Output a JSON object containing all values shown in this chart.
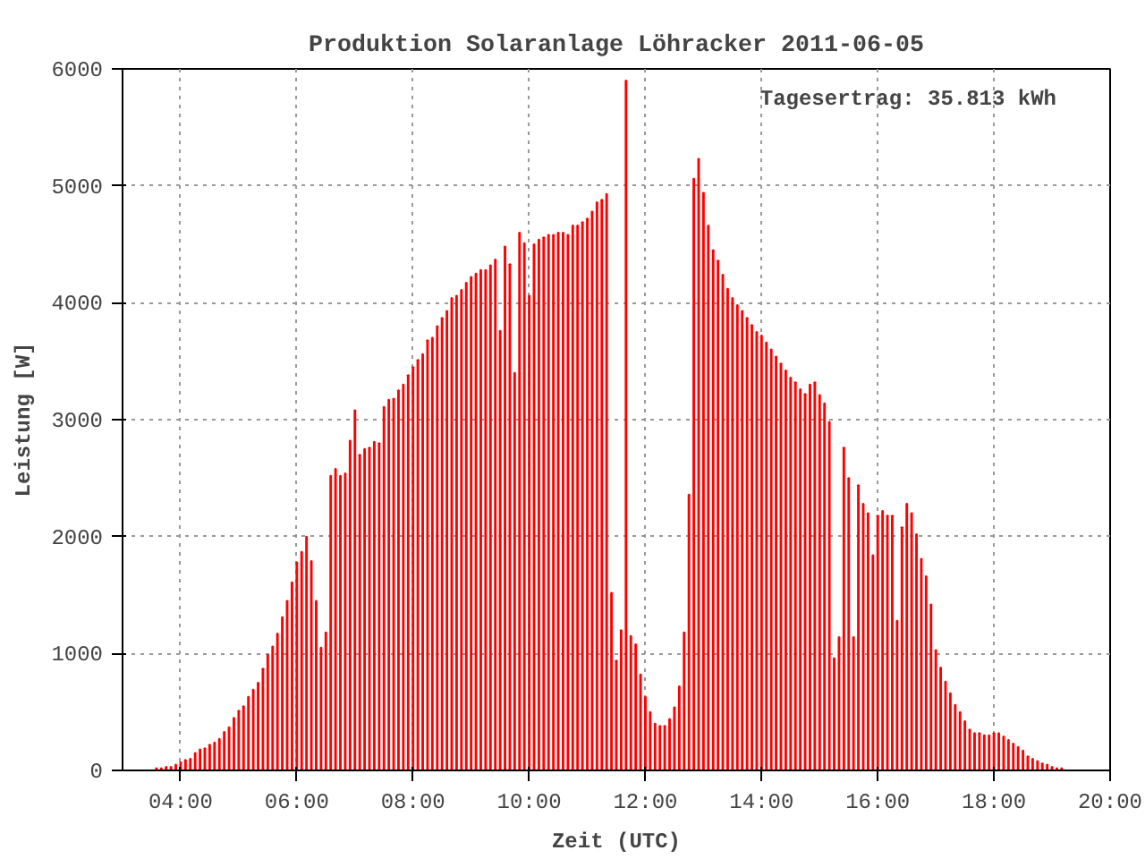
{
  "chart_data": {
    "type": "bar",
    "title": "Produktion Solaranlage Löhracker 2011-06-05",
    "xlabel": "Zeit (UTC)",
    "ylabel": "Leistung [W]",
    "annotations": [
      "Tagesertrag: 35.813 kWh"
    ],
    "color": "#ff0000",
    "grid": true,
    "xlim": [
      3,
      20
    ],
    "xticks": [
      {
        "value": 4,
        "label": "04:00"
      },
      {
        "value": 6,
        "label": "06:00"
      },
      {
        "value": 8,
        "label": "08:00"
      },
      {
        "value": 10,
        "label": "10:00"
      },
      {
        "value": 12,
        "label": "12:00"
      },
      {
        "value": 14,
        "label": "14:00"
      },
      {
        "value": 16,
        "label": "16:00"
      },
      {
        "value": 18,
        "label": "18:00"
      },
      {
        "value": 20,
        "label": "20:00"
      }
    ],
    "ylim": [
      0,
      6000
    ],
    "yticks": [
      0,
      1000,
      2000,
      3000,
      4000,
      5000,
      6000
    ],
    "x": [
      3.5833,
      3.6667,
      3.75,
      3.8333,
      3.9167,
      4,
      4.0833,
      4.1667,
      4.25,
      4.3333,
      4.4167,
      4.5,
      4.5833,
      4.6667,
      4.75,
      4.8333,
      4.9167,
      5,
      5.0833,
      5.1667,
      5.25,
      5.3333,
      5.4167,
      5.5,
      5.5833,
      5.6667,
      5.75,
      5.8333,
      5.9167,
      6,
      6.0833,
      6.1667,
      6.25,
      6.3333,
      6.4167,
      6.5,
      6.5833,
      6.6667,
      6.75,
      6.8333,
      6.9167,
      7,
      7.0833,
      7.1667,
      7.25,
      7.3333,
      7.4167,
      7.5,
      7.5833,
      7.6667,
      7.75,
      7.8333,
      7.9167,
      8,
      8.0833,
      8.1667,
      8.25,
      8.3333,
      8.4167,
      8.5,
      8.5833,
      8.6667,
      8.75,
      8.8333,
      8.9167,
      9,
      9.0833,
      9.1667,
      9.25,
      9.3333,
      9.4167,
      9.5,
      9.5833,
      9.6667,
      9.75,
      9.8333,
      9.9167,
      10,
      10.0833,
      10.1667,
      10.25,
      10.3333,
      10.4167,
      10.5,
      10.5833,
      10.6667,
      10.75,
      10.8333,
      10.9167,
      11,
      11.0833,
      11.1667,
      11.25,
      11.3333,
      11.4167,
      11.5,
      11.5833,
      11.6667,
      11.75,
      11.8333,
      11.9167,
      12,
      12.0833,
      12.1667,
      12.25,
      12.3333,
      12.4167,
      12.5,
      12.5833,
      12.6667,
      12.75,
      12.8333,
      12.9167,
      13,
      13.0833,
      13.1667,
      13.25,
      13.3333,
      13.4167,
      13.5,
      13.5833,
      13.6667,
      13.75,
      13.8333,
      13.9167,
      14,
      14.0833,
      14.1667,
      14.25,
      14.3333,
      14.4167,
      14.5,
      14.5833,
      14.6667,
      14.75,
      14.8333,
      14.9167,
      15,
      15.0833,
      15.1667,
      15.25,
      15.3333,
      15.4167,
      15.5,
      15.5833,
      15.6667,
      15.75,
      15.8333,
      15.9167,
      16,
      16.0833,
      16.1667,
      16.25,
      16.3333,
      16.4167,
      16.5,
      16.5833,
      16.6667,
      16.75,
      16.8333,
      16.9167,
      17,
      17.0833,
      17.1667,
      17.25,
      17.3333,
      17.4167,
      17.5,
      17.5833,
      17.6667,
      17.75,
      17.8333,
      17.9167,
      18,
      18.0833,
      18.1667,
      18.25,
      18.3333,
      18.4167,
      18.5,
      18.5833,
      18.6667,
      18.75,
      18.8333,
      18.9167,
      19,
      19.0833,
      19.1667
    ],
    "values": [
      20,
      20,
      30,
      30,
      50,
      70,
      90,
      100,
      150,
      180,
      190,
      220,
      240,
      270,
      330,
      370,
      450,
      510,
      550,
      630,
      690,
      750,
      870,
      990,
      1060,
      1170,
      1310,
      1450,
      1610,
      1780,
      1870,
      2000,
      1790,
      1450,
      1050,
      1180,
      2520,
      2580,
      2520,
      2540,
      2820,
      3080,
      2700,
      2750,
      2760,
      2810,
      2800,
      3110,
      3170,
      3180,
      3250,
      3300,
      3380,
      3450,
      3510,
      3560,
      3680,
      3700,
      3800,
      3870,
      3930,
      4040,
      4060,
      4110,
      4170,
      4220,
      4250,
      4280,
      4280,
      4320,
      4370,
      3760,
      4480,
      4330,
      3400,
      4600,
      4510,
      4060,
      4500,
      4540,
      4560,
      4580,
      4580,
      4600,
      4600,
      4580,
      4660,
      4660,
      4690,
      4720,
      4780,
      4860,
      4880,
      4930,
      1520,
      940,
      1200,
      5900,
      1150,
      1080,
      820,
      630,
      500,
      400,
      380,
      380,
      440,
      540,
      720,
      1180,
      2360,
      5060,
      5230,
      4940,
      4660,
      4450,
      4360,
      4240,
      4120,
      4040,
      3980,
      3930,
      3870,
      3810,
      3750,
      3720,
      3660,
      3600,
      3540,
      3480,
      3420,
      3360,
      3320,
      3260,
      3220,
      3300,
      3320,
      3210,
      3140,
      2980,
      960,
      1140,
      2760,
      2500,
      1140,
      2440,
      2280,
      2200,
      1840,
      2180,
      2220,
      2180,
      2180,
      1280,
      2080,
      2280,
      2200,
      2020,
      1810,
      1660,
      1420,
      1030,
      880,
      760,
      660,
      560,
      500,
      420,
      350,
      320,
      320,
      300,
      300,
      320,
      320,
      290,
      260,
      230,
      200,
      170,
      120,
      100,
      80,
      60,
      50,
      30,
      20,
      20
    ]
  }
}
